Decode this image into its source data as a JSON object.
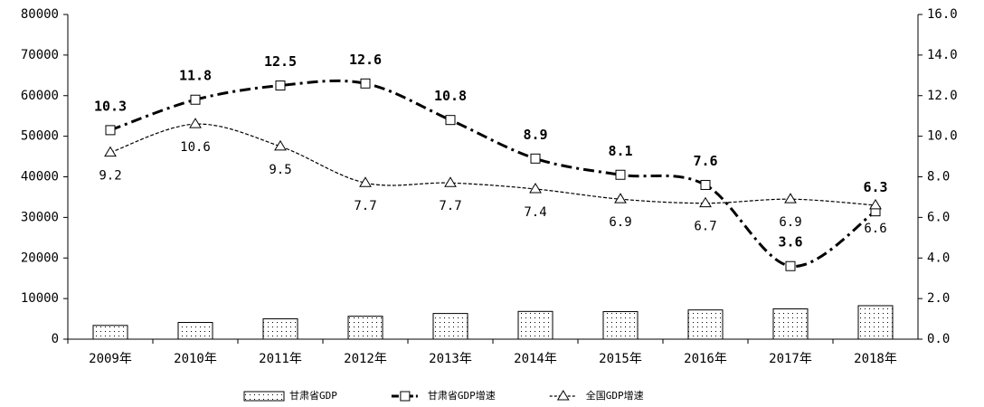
{
  "chart_data": {
    "type": "combo",
    "categories": [
      "2009年",
      "2010年",
      "2011年",
      "2012年",
      "2013年",
      "2014年",
      "2015年",
      "2016年",
      "2017年",
      "2018年"
    ],
    "series": [
      {
        "name": "甘肃省GDP",
        "type": "bar",
        "color": "#000000",
        "values": [
          3387,
          4120,
          5020,
          5650,
          6330,
          6840,
          6790,
          7200,
          7460,
          8250
        ]
      },
      {
        "name": "甘肃省GDP增速",
        "type": "line",
        "axis": "y2",
        "color": "#000000",
        "marker": "square",
        "values": [
          10.3,
          11.8,
          12.5,
          12.6,
          10.8,
          8.9,
          8.1,
          7.6,
          3.6,
          6.3
        ]
      },
      {
        "name": "全国GDP增速",
        "type": "line",
        "axis": "y2",
        "color": "#000000",
        "marker": "triangle",
        "values": [
          9.2,
          10.6,
          9.5,
          7.7,
          7.7,
          7.4,
          6.9,
          6.7,
          6.9,
          6.6
        ]
      }
    ],
    "ylim": [
      0,
      80000
    ],
    "yticks": [
      0,
      10000,
      20000,
      30000,
      40000,
      50000,
      60000,
      70000,
      80000
    ],
    "y2lim": [
      0,
      16
    ],
    "y2ticks": [
      {
        "value": 0,
        "label": "0.0"
      },
      {
        "value": 2,
        "label": "2.0"
      },
      {
        "value": 4,
        "label": "4.0"
      },
      {
        "value": 6,
        "label": "6.0"
      },
      {
        "value": 8,
        "label": "8.0"
      },
      {
        "value": 10,
        "label": "10.0"
      },
      {
        "value": 12,
        "label": "12.0"
      },
      {
        "value": 14,
        "label": "14.0"
      },
      {
        "value": 16,
        "label": "16.0"
      }
    ],
    "legend": "bottom"
  }
}
